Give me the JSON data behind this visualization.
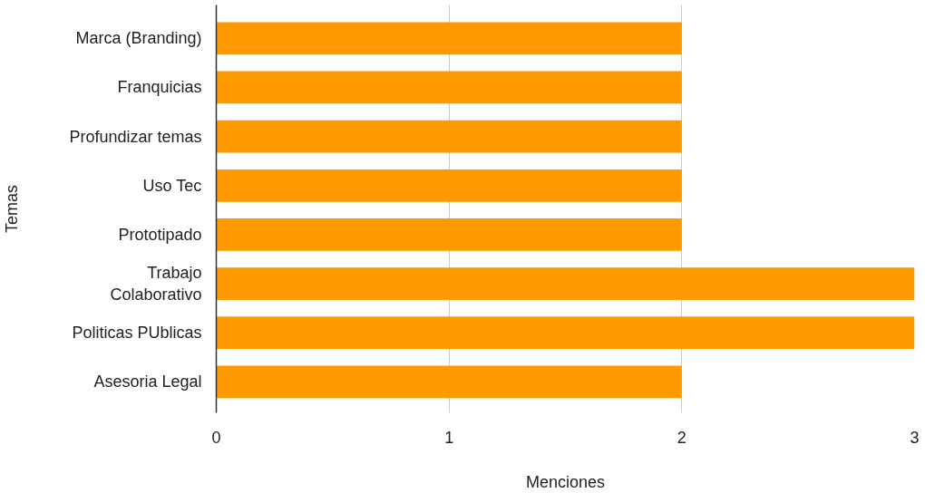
{
  "chart_data": {
    "type": "bar",
    "orientation": "horizontal",
    "xlabel": "Menciones",
    "ylabel": "Temas",
    "categories": [
      "Marca (Branding)",
      "Franquicias",
      "Profundizar temas",
      "Uso Tec",
      "Prototipado",
      "Trabajo\nColaborativo",
      "Politicas PUblicas",
      "Asesoria Legal"
    ],
    "values": [
      2,
      2,
      2,
      2,
      2,
      3,
      3,
      2
    ],
    "color": "#ff9900",
    "xlim": [
      0,
      3
    ],
    "xticks": [
      0,
      1,
      2,
      3
    ],
    "grid": "x"
  }
}
